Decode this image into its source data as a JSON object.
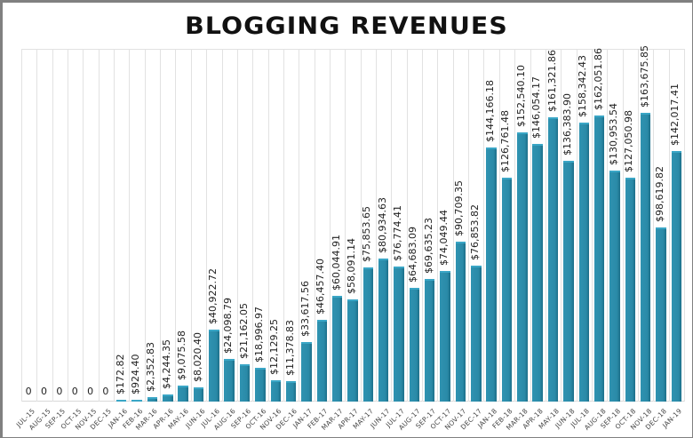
{
  "title": "BLOGGING REVENUES",
  "chart_data": {
    "type": "bar",
    "title": "BLOGGING REVENUES",
    "xlabel": "",
    "ylabel": "",
    "ylim": [
      0,
      200000
    ],
    "grid": "vertical",
    "legend": "none",
    "bar_color": "#2a8aa8",
    "categories": [
      "JUL-15",
      "AUG-15",
      "SEP-15",
      "OCT-15",
      "NOV-15",
      "DEC-15",
      "JAN-16",
      "FEB-16",
      "MAR-16",
      "APR-16",
      "MAY-16",
      "JUN-16",
      "JUL-16",
      "AUG-16",
      "SEP-16",
      "OCT-16",
      "NOV-16",
      "DEC-16",
      "JAN-17",
      "FEB-17",
      "MAR-17",
      "APR-17",
      "MAY-17",
      "JUN-17",
      "JUL-17",
      "AUG-17",
      "SEP-17",
      "OCT-17",
      "NOV-17",
      "DEC-17",
      "JAN-18",
      "FEB-18",
      "MAR-18",
      "APR-18",
      "MAY-18",
      "JUN-18",
      "JUL-18",
      "AUG-18",
      "SEP-18",
      "OCT-18",
      "NOV-18",
      "DEC-18",
      "JAN-19"
    ],
    "values": [
      0,
      0,
      0,
      0,
      0,
      0,
      172.82,
      924.4,
      2352.83,
      4244.35,
      9075.58,
      8020.4,
      40922.72,
      24098.79,
      21162.05,
      18996.97,
      12129.25,
      11378.83,
      33617.56,
      46457.4,
      60044.91,
      58091.14,
      75853.65,
      80934.63,
      76774.41,
      64683.09,
      69635.23,
      74049.44,
      90709.35,
      76853.82,
      144166.18,
      126761.48,
      152540.1,
      146054.17,
      161321.86,
      136383.9,
      158342.43,
      162051.86,
      130953.54,
      127050.98,
      163675.85,
      98619.82,
      142017.41
    ],
    "labels": [
      "0",
      "0",
      "0",
      "0",
      "0",
      "0",
      "$172.82",
      "$924.40",
      "$2,352.83",
      "$4,244.35",
      "$9,075.58",
      "$8,020.40",
      "$40,922.72",
      "$24,098.79",
      "$21,162.05",
      "$18,996.97",
      "$12,129.25",
      "$11,378.83",
      "$33,617.56",
      "$46,457.40",
      "$60,044.91",
      "$58,091.14",
      "$75,853.65",
      "$80,934.63",
      "$76,774.41",
      "$64,683.09",
      "$69,635.23",
      "$74,049.44",
      "$90,709.35",
      "$76,853.82",
      "$144,166.18",
      "$126,761.48",
      "$152,540.10",
      "$146,054.17",
      "$161,321.86",
      "$136,383.90",
      "$158,342.43",
      "$162,051.86",
      "$130,953.54",
      "$127,050.98",
      "$163,675.85",
      "$98,619.82",
      "$142,017.41"
    ]
  }
}
